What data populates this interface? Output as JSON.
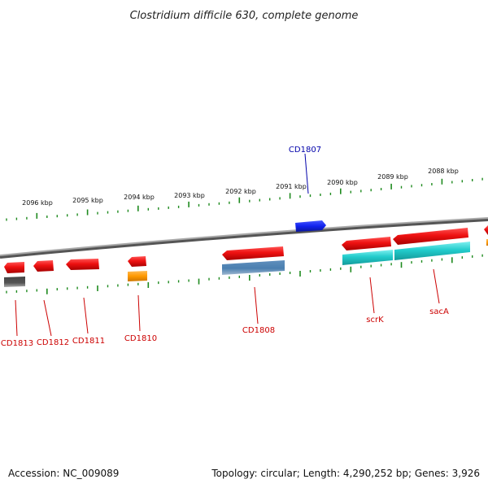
{
  "title": "Clostridium difficile 630, complete genome",
  "footer": {
    "accession": "Accession: NC_009089",
    "summary": "Topology: circular; Length: 4,290,252 bp; Genes: 3,926"
  },
  "scale_labels": [
    "2096 kbp",
    "2095 kbp",
    "2094 kbp",
    "2093 kbp",
    "2092 kbp",
    "2091 kbp",
    "2090 kbp",
    "2089 kbp",
    "2088 kbp"
  ],
  "colors": {
    "backbone": "#808080",
    "tick": "#1e8a1e",
    "gene_red": "#ee1111",
    "gene_blue": "#1122ee",
    "gene_cyan": "#22cccc",
    "gene_orange": "#ff9900",
    "gene_steel": "#4a7fb0",
    "gene_gray": "#555555",
    "label_red": "#cc0000",
    "label_blue": "#0000aa"
  },
  "gene_labels": {
    "cd1807": "CD1807",
    "cd1808": "CD1808",
    "scrK": "scrK",
    "sacA": "sacA",
    "cd1810": "CD1810",
    "cd1811": "CD1811",
    "cd1812": "CD1812",
    "cd1813": "CD1813"
  }
}
